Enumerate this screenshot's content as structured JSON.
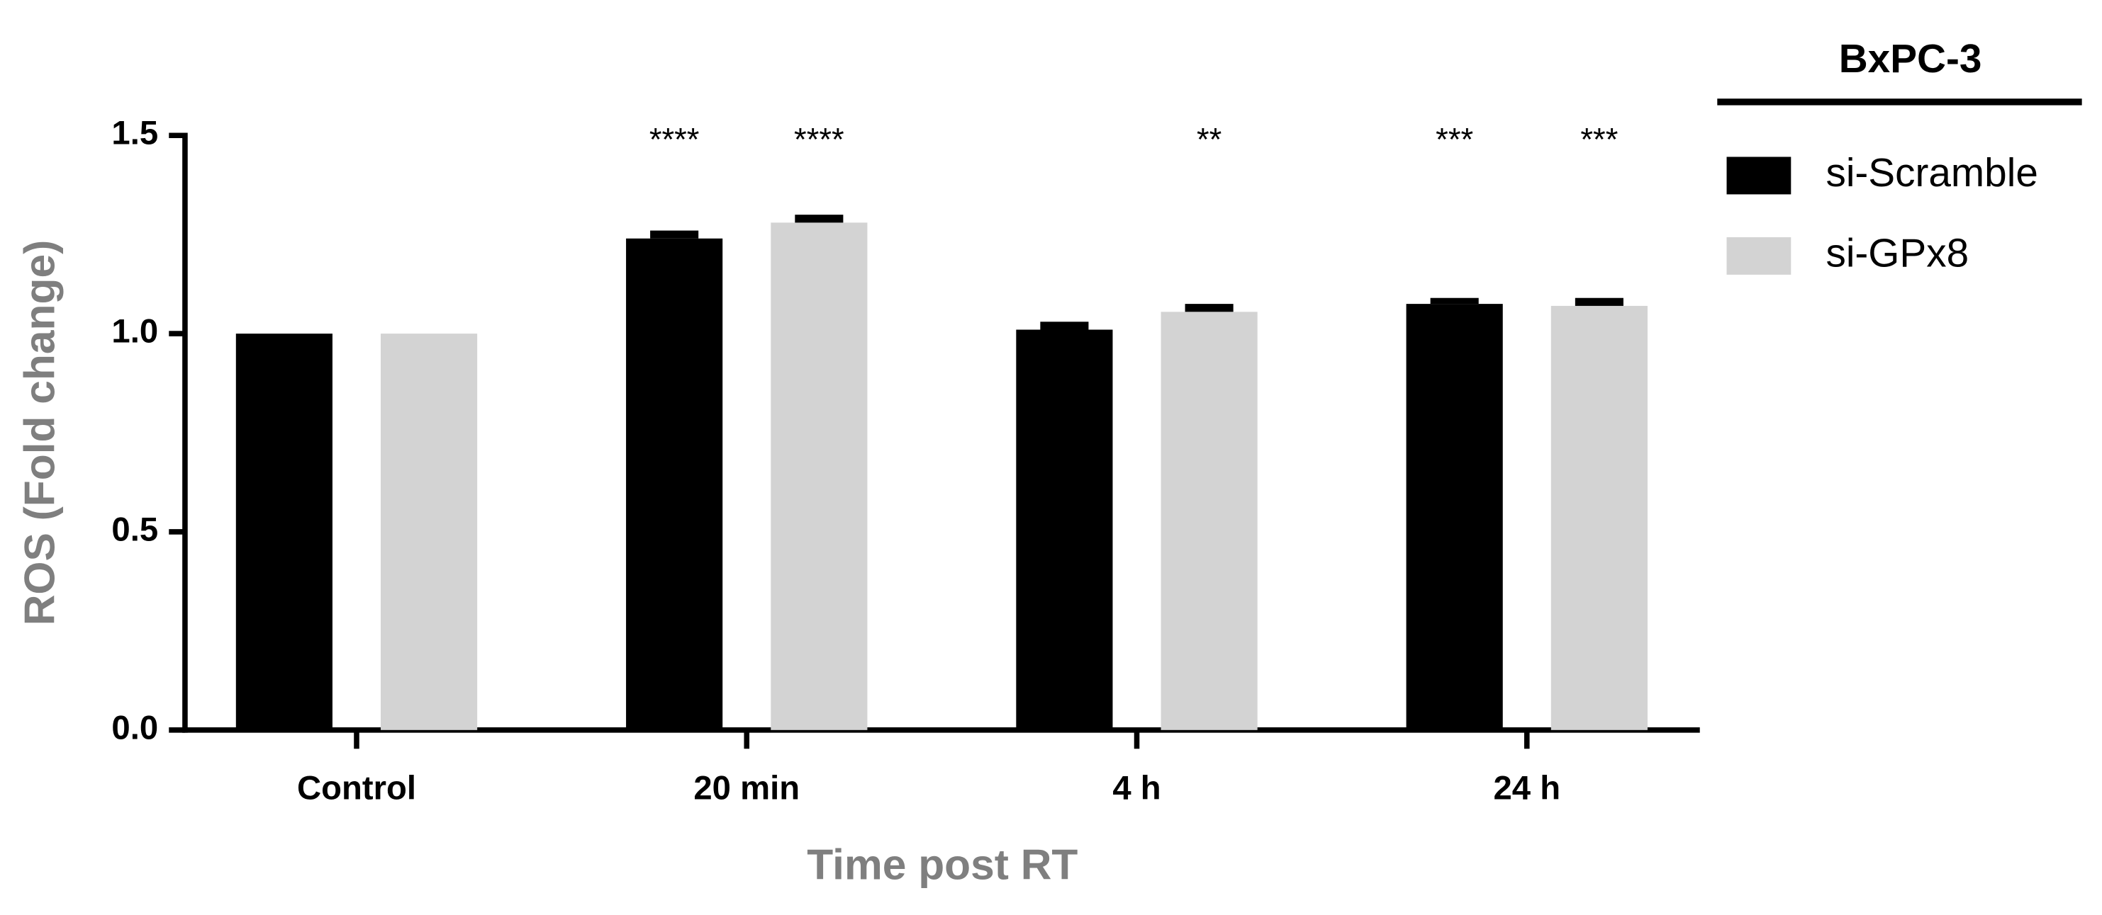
{
  "chart_data": {
    "type": "bar",
    "xlabel": "Time post RT",
    "ylabel": "ROS (Fold change)",
    "legend_title": "BxPC-3",
    "categories": [
      "Control",
      "20 min",
      "4 h",
      "24 h"
    ],
    "series": [
      {
        "name": "si-Scramble",
        "color": "#000000",
        "values": [
          1.0,
          1.24,
          1.01,
          1.075
        ],
        "errors": [
          0,
          0.02,
          0.02,
          0.015
        ],
        "annotations": [
          null,
          "****",
          null,
          "***"
        ]
      },
      {
        "name": "si-GPx8",
        "color": "#d3d3d3",
        "values": [
          1.0,
          1.28,
          1.055,
          1.07
        ],
        "errors": [
          0,
          0.02,
          0.02,
          0.02
        ],
        "annotations": [
          null,
          "****",
          "**",
          "***"
        ]
      }
    ],
    "ylim": [
      0,
      1.5
    ],
    "yticks": [
      {
        "value": 0,
        "label": "0.0"
      },
      0.5,
      {
        "value": 1,
        "label": "1.0"
      },
      1.5
    ],
    "legend": "right"
  }
}
